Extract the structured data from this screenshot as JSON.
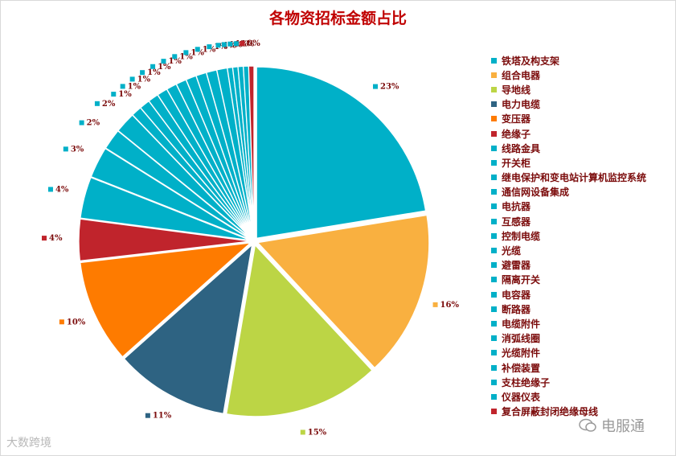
{
  "chart_data": {
    "type": "pie",
    "title": "各物资招标金额占比",
    "categories": [
      "铁塔及构支架",
      "组合电器",
      "导地线",
      "电力电缆",
      "变压器",
      "绝缘子",
      "线路金具",
      "开关柜",
      "继电保护和变电站计算机监控系统",
      "通信网设备集成",
      "电抗器",
      "互感器",
      "控制电缆",
      "光缆",
      "避雷器",
      "隔离开关",
      "电容器",
      "断路器",
      "电缆附件",
      "消弧线圈",
      "光缆附件",
      "补偿装置",
      "支柱绝缘子",
      "仪器仪表",
      "复合屏蔽封闭绝缘母线"
    ],
    "values": [
      23,
      16,
      15,
      11,
      10,
      4,
      4,
      3,
      2,
      2,
      1,
      1,
      1,
      1,
      1,
      1,
      1,
      1,
      1,
      1,
      0.5,
      0.5,
      0.5,
      0.5,
      0.5
    ],
    "data_labels": [
      "23%",
      "16%",
      "15%",
      "11%",
      "10%",
      "4%",
      "4%",
      "3%",
      "2%",
      "2%",
      "1%",
      "1%",
      "1%",
      "1%",
      "1%",
      "1%",
      "1%",
      "1%",
      "1%",
      "1%",
      "1%",
      "1%",
      "1%",
      "1%",
      "0%"
    ],
    "colors": [
      "#00b0c8",
      "#f9b040",
      "#bcd545",
      "#2e6382",
      "#fe7b00",
      "#c0242c",
      "#00b0c8",
      "#00b0c8",
      "#00b0c8",
      "#00b0c8",
      "#00b0c8",
      "#00b0c8",
      "#00b0c8",
      "#00b0c8",
      "#00b0c8",
      "#00b0c8",
      "#00b0c8",
      "#00b0c8",
      "#00b0c8",
      "#00b0c8",
      "#00b0c8",
      "#00b0c8",
      "#00b0c8",
      "#00b0c8",
      "#c0242c"
    ],
    "exploded": true,
    "legend_position": "right"
  },
  "watermarks": {
    "left": "大数跨境",
    "right": "电服通"
  }
}
